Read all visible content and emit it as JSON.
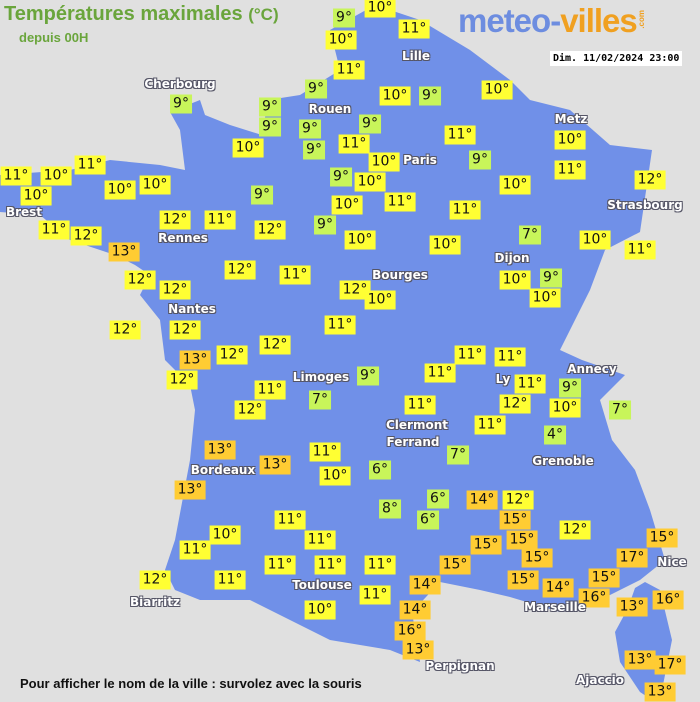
{
  "header": {
    "title": "Températures maximales",
    "unit": "(°C)",
    "subtitle": "depuis 00H",
    "logo_part1": "meteo-",
    "logo_part2": "villes",
    "logo_suffix": ".com",
    "datetime": "Dim. 11/02/2024 23:00"
  },
  "footer": {
    "hint": "Pour afficher le nom de la ville : survolez avec la souris"
  },
  "colors": {
    "land": "#7090e8",
    "sea": "#e0e0e0",
    "temp_cold": "#c8f55a",
    "temp_mild": "#ffff33",
    "temp_warm": "#ffcc33"
  },
  "cities": [
    "Cherbourg",
    "Lille",
    "Rouen",
    "Paris",
    "Metz",
    "Strasbourg",
    "Brest",
    "Rennes",
    "Nantes",
    "Dijon",
    "Bourges",
    "Limoges",
    "Annecy",
    "Ly",
    "Clermont",
    "Ferrand",
    "Grenoble",
    "Bordeaux",
    "Toulouse",
    "Marseille",
    "Nice",
    "Biarritz",
    "Perpignan",
    "Ajaccio"
  ],
  "temperatures": [
    9,
    10,
    11,
    10,
    11,
    9,
    9,
    9,
    9,
    9,
    9,
    10,
    10,
    9,
    9,
    11,
    10,
    11,
    9,
    10,
    10,
    11,
    12,
    11,
    11,
    10,
    10,
    10,
    10,
    9,
    9,
    10,
    11,
    10,
    11,
    11,
    12,
    11,
    12,
    9,
    10,
    10,
    12,
    13,
    10,
    7,
    10,
    11,
    12,
    12,
    12,
    11,
    12,
    10,
    10,
    9,
    10,
    12,
    12,
    11,
    13,
    12,
    12,
    12,
    11,
    11,
    11,
    9,
    11,
    11,
    7,
    12,
    9,
    10,
    7,
    11,
    12,
    11,
    4,
    13,
    13,
    11,
    7,
    6,
    10,
    13,
    6,
    6,
    8,
    11,
    10,
    11,
    11,
    14,
    12,
    15,
    15,
    15,
    12,
    15,
    17,
    15,
    15,
    15,
    15,
    14,
    14,
    11,
    11,
    11,
    11,
    12,
    11,
    14,
    16,
    13,
    10,
    16,
    13,
    16,
    13,
    17,
    13
  ]
}
